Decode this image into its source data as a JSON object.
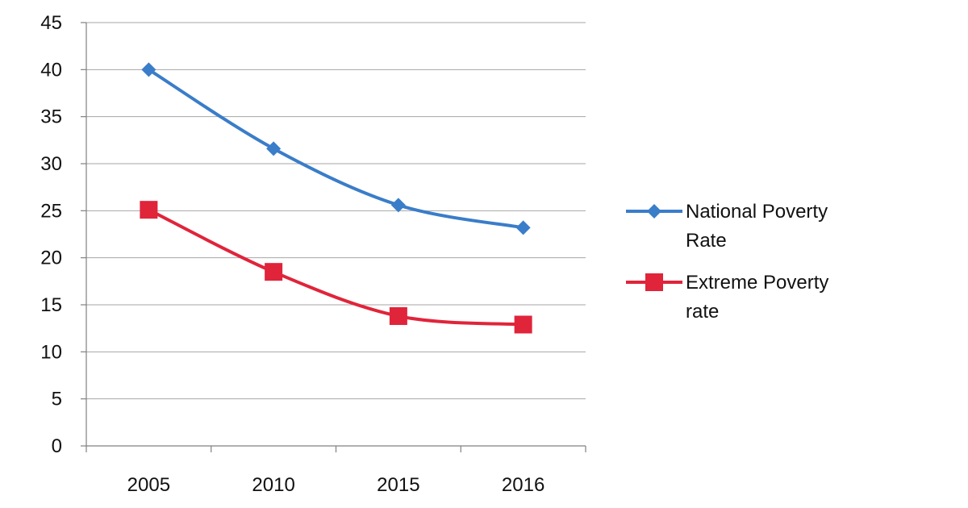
{
  "chart_data": {
    "type": "line",
    "title": "",
    "xlabel": "",
    "ylabel": "",
    "categories": [
      "2005",
      "2010",
      "2015",
      "2016"
    ],
    "ylim": [
      0,
      45
    ],
    "yticks": [
      0,
      5,
      10,
      15,
      20,
      25,
      30,
      35,
      40,
      45
    ],
    "grid": true,
    "legend_position": "right",
    "series": [
      {
        "name": "National Poverty Rate",
        "legend_lines": [
          "National Poverty",
          "Rate"
        ],
        "values": [
          40.0,
          31.6,
          25.6,
          23.2
        ],
        "color": "#3a7dc9",
        "marker": "diamond",
        "smooth": true
      },
      {
        "name": "Extreme Poverty rate",
        "legend_lines": [
          "Extreme Poverty",
          "rate"
        ],
        "values": [
          25.1,
          18.5,
          13.8,
          12.9
        ],
        "color": "#e0243a",
        "marker": "square",
        "smooth": true
      }
    ]
  }
}
